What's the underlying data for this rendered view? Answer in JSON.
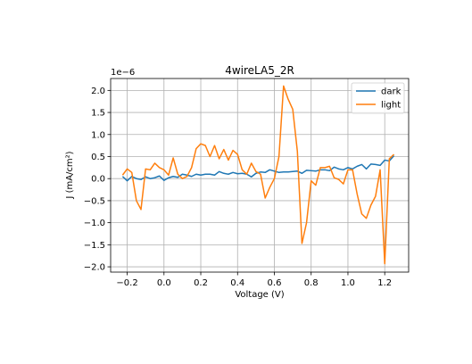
{
  "chart_data": {
    "type": "line",
    "title": "4wireLA5_2R",
    "xlabel": "Voltage (V)",
    "ylabel": "J (mA/cm²)",
    "y_offset_label": "1e−6",
    "xlim": [
      -0.29,
      1.33
    ],
    "ylim": [
      -2.12,
      2.27
    ],
    "x_ticks": [
      -0.2,
      0.0,
      0.2,
      0.4,
      0.6,
      0.8,
      1.0,
      1.2
    ],
    "x_tick_labels": [
      "−0.2",
      "0.0",
      "0.2",
      "0.4",
      "0.6",
      "0.8",
      "1.0",
      "1.2"
    ],
    "y_ticks": [
      -2.0,
      -1.5,
      -1.0,
      -0.5,
      0.0,
      0.5,
      1.0,
      1.5,
      2.0
    ],
    "y_tick_labels": [
      "−2.0",
      "−1.5",
      "−1.0",
      "−0.5",
      "0.0",
      "0.5",
      "1.0",
      "1.5",
      "2.0"
    ],
    "grid": true,
    "legend_position": "top-right",
    "x": [
      -0.225,
      -0.2,
      -0.175,
      -0.15,
      -0.125,
      -0.1,
      -0.075,
      -0.05,
      -0.025,
      0.0,
      0.025,
      0.05,
      0.075,
      0.1,
      0.125,
      0.15,
      0.175,
      0.2,
      0.225,
      0.25,
      0.275,
      0.3,
      0.325,
      0.35,
      0.375,
      0.4,
      0.425,
      0.45,
      0.475,
      0.5,
      0.525,
      0.55,
      0.575,
      0.6,
      0.625,
      0.65,
      0.675,
      0.7,
      0.725,
      0.75,
      0.775,
      0.8,
      0.825,
      0.85,
      0.875,
      0.9,
      0.925,
      0.95,
      0.975,
      1.0,
      1.025,
      1.05,
      1.075,
      1.1,
      1.125,
      1.15,
      1.175,
      1.2,
      1.225,
      1.25
    ],
    "series": [
      {
        "name": "dark",
        "color": "#1f77b4",
        "values": [
          0.05,
          -0.05,
          0.05,
          0.0,
          -0.02,
          0.04,
          0.0,
          0.02,
          0.06,
          -0.04,
          0.02,
          0.05,
          0.03,
          0.1,
          0.08,
          0.05,
          0.1,
          0.08,
          0.1,
          0.1,
          0.08,
          0.16,
          0.12,
          0.1,
          0.14,
          0.11,
          0.12,
          0.1,
          0.04,
          0.12,
          0.15,
          0.14,
          0.2,
          0.17,
          0.14,
          0.15,
          0.15,
          0.16,
          0.17,
          0.12,
          0.19,
          0.18,
          0.17,
          0.2,
          0.2,
          0.18,
          0.26,
          0.22,
          0.2,
          0.25,
          0.22,
          0.28,
          0.32,
          0.22,
          0.33,
          0.32,
          0.3,
          0.42,
          0.4,
          0.52
        ]
      },
      {
        "name": "light",
        "color": "#ff7f0e",
        "values": [
          0.08,
          0.22,
          0.14,
          -0.5,
          -0.7,
          0.22,
          0.2,
          0.35,
          0.25,
          0.2,
          0.08,
          0.47,
          0.1,
          0.0,
          0.05,
          0.25,
          0.68,
          0.79,
          0.75,
          0.5,
          0.75,
          0.45,
          0.66,
          0.42,
          0.64,
          0.55,
          0.2,
          0.1,
          0.35,
          0.16,
          0.1,
          -0.44,
          -0.2,
          0.0,
          0.5,
          2.1,
          1.8,
          1.57,
          0.62,
          -1.47,
          -1.0,
          -0.05,
          -0.15,
          0.25,
          0.25,
          0.28,
          0.02,
          -0.02,
          -0.12,
          0.2,
          0.2,
          -0.35,
          -0.8,
          -0.9,
          -0.6,
          -0.4,
          0.2,
          -1.93,
          0.45,
          0.55
        ]
      }
    ]
  }
}
